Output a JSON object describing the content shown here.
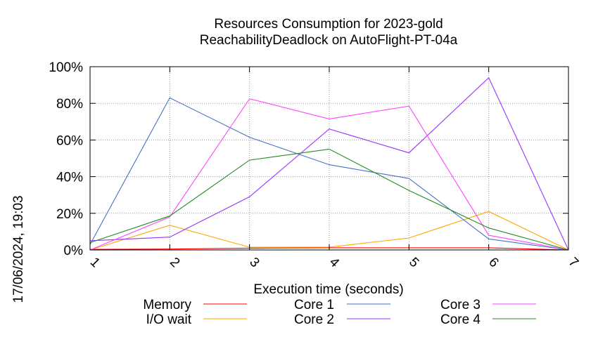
{
  "chart_data": {
    "type": "line",
    "title_lines": [
      "Resources Consumption for 2023-gold",
      "ReachabilityDeadlock on AutoFlight-PT-04a"
    ],
    "xlabel": "Execution time (seconds)",
    "ylabel": "",
    "side_label": "17/06/2024, 19:03",
    "x": [
      1,
      2,
      3,
      4,
      5,
      6,
      7
    ],
    "x_ticks": [
      "1",
      "2",
      "3",
      "4",
      "5",
      "6",
      "7"
    ],
    "xlim": [
      1,
      7
    ],
    "ylim": [
      0,
      100
    ],
    "y_ticks": [
      "0%",
      "20%",
      "40%",
      "60%",
      "80%",
      "100%"
    ],
    "y_tick_values": [
      0,
      20,
      40,
      60,
      80,
      100
    ],
    "grid": true,
    "legend_position": "bottom",
    "series": [
      {
        "name": "Memory",
        "color": "#ff0000",
        "values": [
          0.3,
          0.5,
          1.0,
          1.2,
          1.2,
          1.2,
          0
        ]
      },
      {
        "name": "I/O wait",
        "color": "#ffa500",
        "values": [
          0,
          13.5,
          1.5,
          1.5,
          6.5,
          21,
          0
        ]
      },
      {
        "name": "Core 1",
        "color": "#4472c4",
        "values": [
          3,
          83,
          61.5,
          46.5,
          39,
          6,
          0
        ]
      },
      {
        "name": "Core 2",
        "color": "#9933ff",
        "values": [
          5,
          7,
          29,
          66,
          53,
          94,
          0
        ]
      },
      {
        "name": "Core 3",
        "color": "#ff44ff",
        "values": [
          0,
          18,
          82.5,
          71.5,
          78.5,
          8,
          0
        ]
      },
      {
        "name": "Core 4",
        "color": "#228b22",
        "values": [
          4,
          18.5,
          49,
          55,
          32.5,
          12,
          0
        ]
      }
    ]
  }
}
